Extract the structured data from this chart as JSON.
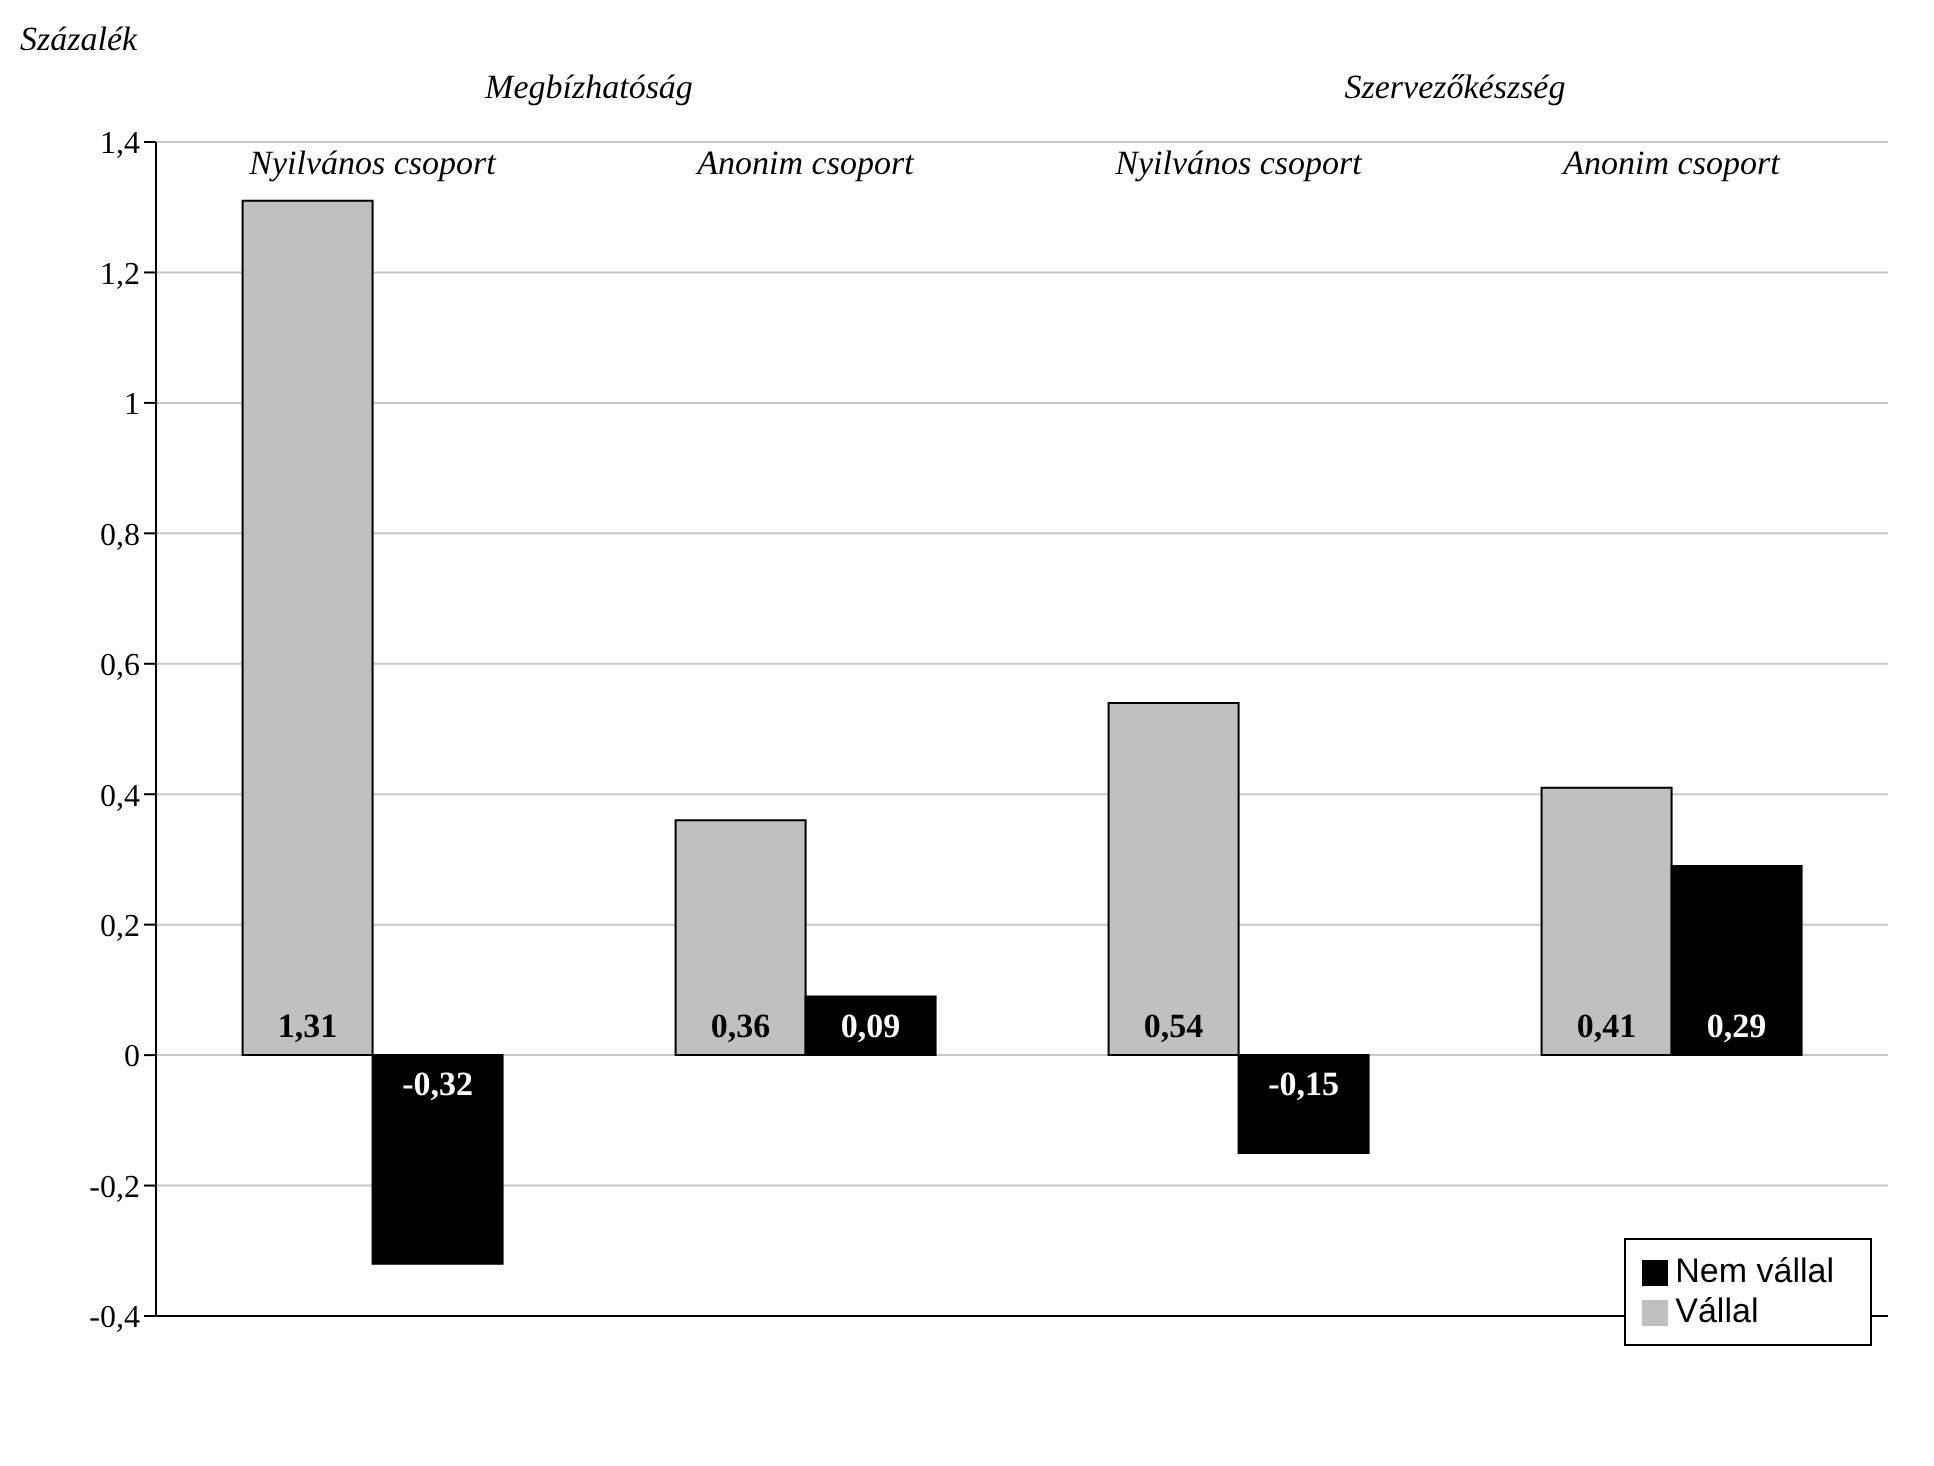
{
  "chart_data": {
    "type": "bar",
    "ylabel": "Százalék",
    "annotations": [
      "Megbízhatóság",
      "Szervezőkészség"
    ],
    "categories": [
      "Nyilvános csoport",
      "Anonim csoport",
      "Nyilvános csoport",
      "Anonim csoport"
    ],
    "series": [
      {
        "name": "Vállal",
        "color": "#c0c0c0",
        "values": [
          1.31,
          0.36,
          0.54,
          0.41
        ],
        "value_labels": [
          "1,31",
          "0,36",
          "0,54",
          "0,41"
        ]
      },
      {
        "name": "Nem vállal",
        "color": "#000000",
        "values": [
          -0.32,
          0.09,
          -0.15,
          0.29
        ],
        "value_labels": [
          "-0,32",
          "0,09",
          "-0,15",
          "0,29"
        ]
      }
    ],
    "ylim": [
      -0.4,
      1.4
    ],
    "yticks": [
      {
        "value": -0.4,
        "label": "-0,4"
      },
      {
        "value": -0.2,
        "label": "-0,2"
      },
      0,
      {
        "value": 0.2,
        "label": "0,2"
      },
      {
        "value": 0.4,
        "label": "0,4"
      },
      {
        "value": 0.6,
        "label": "0,6"
      },
      {
        "value": 0.8,
        "label": "0,8"
      },
      1,
      {
        "value": 1.2,
        "label": "1,2"
      },
      {
        "value": 1.4,
        "label": "1,4"
      }
    ],
    "grid": "y",
    "legend": "bottom right"
  }
}
